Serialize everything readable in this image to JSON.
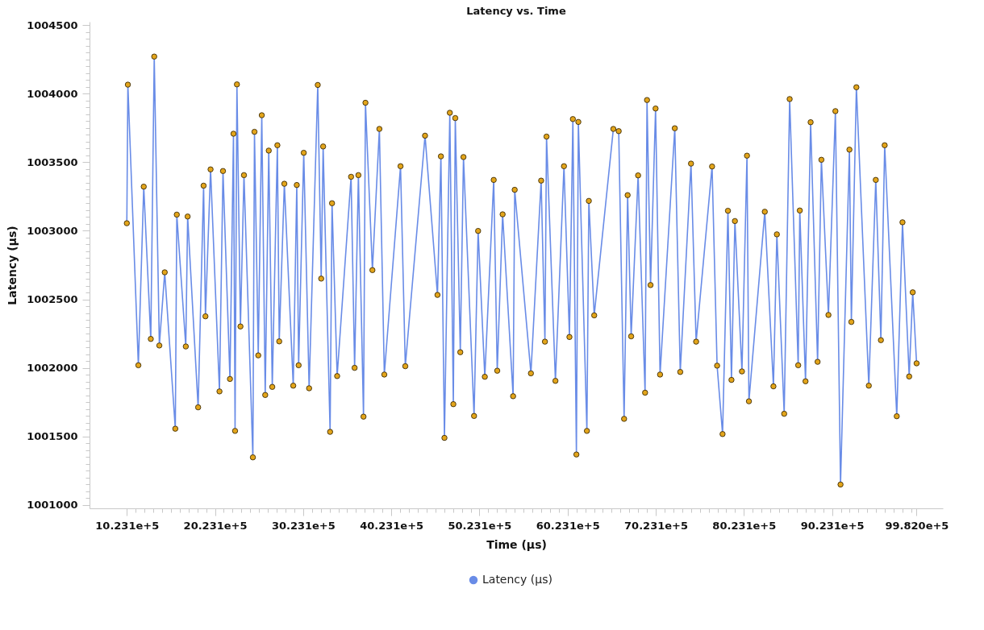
{
  "chart_data": {
    "type": "line",
    "title": "Latency vs. Time",
    "xlabel": "Time (µs)",
    "ylabel": "Latency (µs)",
    "xlim": [
      600000,
      10280000
    ],
    "ylim": [
      1000975,
      1004525
    ],
    "xticks": [
      {
        "value": 1023100,
        "label": "10.231e+5"
      },
      {
        "value": 1123100,
        "label": null
      },
      {
        "value": 1223100,
        "label": null
      },
      {
        "value": 1323100,
        "label": null
      },
      {
        "value": 1423100,
        "label": null
      },
      {
        "value": 1523100,
        "label": null
      },
      {
        "value": 1623100,
        "label": null
      },
      {
        "value": 1723100,
        "label": null
      },
      {
        "value": 1823100,
        "label": null
      },
      {
        "value": 1923100,
        "label": null
      },
      {
        "value": 2023100,
        "label": "20.231e+5"
      },
      {
        "value": 2123100,
        "label": null
      },
      {
        "value": 2223100,
        "label": null
      },
      {
        "value": 2323100,
        "label": null
      },
      {
        "value": 2423100,
        "label": null
      },
      {
        "value": 2523100,
        "label": null
      },
      {
        "value": 2623100,
        "label": null
      },
      {
        "value": 2723100,
        "label": null
      },
      {
        "value": 2823100,
        "label": null
      },
      {
        "value": 2923100,
        "label": null
      },
      {
        "value": 3023100,
        "label": "30.231e+5"
      },
      {
        "value": 3123100,
        "label": null
      },
      {
        "value": 3223100,
        "label": null
      },
      {
        "value": 3323100,
        "label": null
      },
      {
        "value": 3423100,
        "label": null
      },
      {
        "value": 3523100,
        "label": null
      },
      {
        "value": 3623100,
        "label": null
      },
      {
        "value": 3723100,
        "label": null
      },
      {
        "value": 3823100,
        "label": null
      },
      {
        "value": 3923100,
        "label": null
      },
      {
        "value": 4023100,
        "label": "40.231e+5"
      },
      {
        "value": 4123100,
        "label": null
      },
      {
        "value": 4223100,
        "label": null
      },
      {
        "value": 4323100,
        "label": null
      },
      {
        "value": 4423100,
        "label": null
      },
      {
        "value": 4523100,
        "label": null
      },
      {
        "value": 4623100,
        "label": null
      },
      {
        "value": 4723100,
        "label": null
      },
      {
        "value": 4823100,
        "label": null
      },
      {
        "value": 4923100,
        "label": null
      },
      {
        "value": 5023100,
        "label": "50.231e+5"
      },
      {
        "value": 5123100,
        "label": null
      },
      {
        "value": 5223100,
        "label": null
      },
      {
        "value": 5323100,
        "label": null
      },
      {
        "value": 5423100,
        "label": null
      },
      {
        "value": 5523100,
        "label": null
      },
      {
        "value": 5623100,
        "label": null
      },
      {
        "value": 5723100,
        "label": null
      },
      {
        "value": 5823100,
        "label": null
      },
      {
        "value": 5923100,
        "label": null
      },
      {
        "value": 6023100,
        "label": "60.231e+5"
      },
      {
        "value": 6123100,
        "label": null
      },
      {
        "value": 6223100,
        "label": null
      },
      {
        "value": 6323100,
        "label": null
      },
      {
        "value": 6423100,
        "label": null
      },
      {
        "value": 6523100,
        "label": null
      },
      {
        "value": 6623100,
        "label": null
      },
      {
        "value": 6723100,
        "label": null
      },
      {
        "value": 6823100,
        "label": null
      },
      {
        "value": 6923100,
        "label": null
      },
      {
        "value": 7023100,
        "label": "70.231e+5"
      },
      {
        "value": 7123100,
        "label": null
      },
      {
        "value": 7223100,
        "label": null
      },
      {
        "value": 7323100,
        "label": null
      },
      {
        "value": 7423100,
        "label": null
      },
      {
        "value": 7523100,
        "label": null
      },
      {
        "value": 7623100,
        "label": null
      },
      {
        "value": 7723100,
        "label": null
      },
      {
        "value": 7823100,
        "label": null
      },
      {
        "value": 7923100,
        "label": null
      },
      {
        "value": 8023100,
        "label": "80.231e+5"
      },
      {
        "value": 8123100,
        "label": null
      },
      {
        "value": 8223100,
        "label": null
      },
      {
        "value": 8323100,
        "label": null
      },
      {
        "value": 8423100,
        "label": null
      },
      {
        "value": 8523100,
        "label": null
      },
      {
        "value": 8623100,
        "label": null
      },
      {
        "value": 8723100,
        "label": null
      },
      {
        "value": 8823100,
        "label": null
      },
      {
        "value": 8923100,
        "label": null
      },
      {
        "value": 9023100,
        "label": "90.231e+5"
      },
      {
        "value": 9123100,
        "label": null
      },
      {
        "value": 9223100,
        "label": null
      },
      {
        "value": 9323100,
        "label": null
      },
      {
        "value": 9423100,
        "label": null
      },
      {
        "value": 9523100,
        "label": null
      },
      {
        "value": 9623100,
        "label": null
      },
      {
        "value": 9723100,
        "label": null
      },
      {
        "value": 9823100,
        "label": null
      },
      {
        "value": 9923100,
        "label": null
      },
      {
        "value": 9982000,
        "label": "99.820e+5"
      }
    ],
    "yticks": [
      1001000,
      {
        "value": 1001050,
        "label": null
      },
      {
        "value": 1001100,
        "label": null
      },
      {
        "value": 1001150,
        "label": null
      },
      {
        "value": 1001200,
        "label": null
      },
      {
        "value": 1001250,
        "label": null
      },
      {
        "value": 1001300,
        "label": null
      },
      {
        "value": 1001350,
        "label": null
      },
      {
        "value": 1001400,
        "label": null
      },
      {
        "value": 1001450,
        "label": null
      },
      1001500,
      {
        "value": 1001550,
        "label": null
      },
      {
        "value": 1001600,
        "label": null
      },
      {
        "value": 1001650,
        "label": null
      },
      {
        "value": 1001700,
        "label": null
      },
      {
        "value": 1001750,
        "label": null
      },
      {
        "value": 1001800,
        "label": null
      },
      {
        "value": 1001850,
        "label": null
      },
      {
        "value": 1001900,
        "label": null
      },
      {
        "value": 1001950,
        "label": null
      },
      1002000,
      {
        "value": 1002050,
        "label": null
      },
      {
        "value": 1002100,
        "label": null
      },
      {
        "value": 1002150,
        "label": null
      },
      {
        "value": 1002200,
        "label": null
      },
      {
        "value": 1002250,
        "label": null
      },
      {
        "value": 1002300,
        "label": null
      },
      {
        "value": 1002350,
        "label": null
      },
      {
        "value": 1002400,
        "label": null
      },
      {
        "value": 1002450,
        "label": null
      },
      1002500,
      {
        "value": 1002550,
        "label": null
      },
      {
        "value": 1002600,
        "label": null
      },
      {
        "value": 1002650,
        "label": null
      },
      {
        "value": 1002700,
        "label": null
      },
      {
        "value": 1002750,
        "label": null
      },
      {
        "value": 1002800,
        "label": null
      },
      {
        "value": 1002850,
        "label": null
      },
      {
        "value": 1002900,
        "label": null
      },
      {
        "value": 1002950,
        "label": null
      },
      1003000,
      {
        "value": 1003050,
        "label": null
      },
      {
        "value": 1003100,
        "label": null
      },
      {
        "value": 1003150,
        "label": null
      },
      {
        "value": 1003200,
        "label": null
      },
      {
        "value": 1003250,
        "label": null
      },
      {
        "value": 1003300,
        "label": null
      },
      {
        "value": 1003350,
        "label": null
      },
      {
        "value": 1003400,
        "label": null
      },
      {
        "value": 1003450,
        "label": null
      },
      1003500,
      {
        "value": 1003550,
        "label": null
      },
      {
        "value": 1003600,
        "label": null
      },
      {
        "value": 1003650,
        "label": null
      },
      {
        "value": 1003700,
        "label": null
      },
      {
        "value": 1003750,
        "label": null
      },
      {
        "value": 1003800,
        "label": null
      },
      {
        "value": 1003850,
        "label": null
      },
      {
        "value": 1003900,
        "label": null
      },
      {
        "value": 1003950,
        "label": null
      },
      1004000,
      {
        "value": 1004050,
        "label": null
      },
      {
        "value": 1004100,
        "label": null
      },
      {
        "value": 1004150,
        "label": null
      },
      {
        "value": 1004200,
        "label": null
      },
      {
        "value": 1004250,
        "label": null
      },
      {
        "value": 1004300,
        "label": null
      },
      {
        "value": 1004350,
        "label": null
      },
      {
        "value": 1004400,
        "label": null
      },
      {
        "value": 1004450,
        "label": null
      },
      1004500
    ],
    "grid": false,
    "legend": "bottom",
    "marker": "circle",
    "line_style": "solid",
    "series": [
      {
        "name": "Latency (µs)",
        "color": "#4f78e3",
        "x": [
          1023100,
          1035000,
          1154000,
          1215000,
          1295000,
          1334000,
          1392000,
          1453000,
          1573000,
          1590000,
          1692000,
          1713000,
          1832000,
          1894000,
          1915000,
          1973000,
          2074000,
          2114000,
          2193000,
          2233000,
          2251000,
          2272000,
          2312000,
          2352000,
          2453000,
          2471000,
          2514000,
          2554000,
          2593000,
          2633000,
          2673000,
          2731000,
          2752000,
          2810000,
          2911000,
          2951000,
          2972000,
          3030000,
          3091000,
          3189000,
          3228000,
          3250000,
          3329000,
          3351000,
          3409000,
          3567000,
          3607000,
          3650000,
          3708000,
          3730000,
          3809000,
          3888000,
          3944000,
          4128000,
          4182000,
          4406000,
          4547000,
          4586000,
          4626000,
          4687000,
          4727000,
          4749000,
          4806000,
          4842000,
          4962000,
          5008000,
          5084000,
          5185000,
          5225000,
          5286000,
          5405000,
          5423000,
          5607000,
          5723000,
          5766000,
          5784000,
          5885000,
          5982000,
          6044000,
          6083000,
          6123000,
          6145000,
          6242000,
          6264000,
          6325000,
          6542000,
          6603000,
          6664000,
          6704000,
          6744000,
          6823000,
          6902000,
          6924000,
          6964000,
          7021000,
          7072000,
          7239000,
          7301000,
          7423000,
          7481000,
          7662000,
          7719000,
          7781000,
          7842000,
          7882000,
          7921000,
          8001000,
          8058000,
          8080000,
          8260000,
          8358000,
          8397000,
          8480000,
          8542000,
          8639000,
          8657000,
          8722000,
          8780000,
          8859000,
          8902000,
          8982000,
          9061000,
          9119000,
          9220000,
          9242000,
          9299000,
          9440000,
          9519000,
          9577000,
          9620000,
          9757000,
          9822000,
          9898000,
          9938000,
          9982000
        ],
        "values": [
          1003055,
          1004066,
          1002019,
          1003322,
          1002211,
          1004271,
          1002163,
          1002697,
          1001556,
          1003118,
          1002156,
          1003104,
          1001712,
          1003329,
          1002376,
          1003448,
          1001828,
          1003436,
          1001919,
          1003708,
          1001540,
          1004068,
          1002302,
          1003406,
          1001347,
          1003722,
          1002091,
          1003843,
          1001802,
          1003585,
          1001861,
          1003624,
          1002193,
          1003343,
          1001870,
          1003334,
          1002019,
          1003569,
          1001851,
          1004064,
          1002651,
          1003615,
          1001533,
          1003201,
          1001940,
          1003394,
          1002000,
          1003406,
          1001644,
          1003934,
          1002713,
          1003743,
          1001951,
          1003471,
          1002012,
          1003694,
          1002532,
          1003543,
          1001489,
          1003861,
          1001735,
          1003822,
          1002114,
          1003538,
          1001649,
          1002999,
          1001935,
          1003371,
          1001979,
          1003120,
          1001793,
          1003299,
          1001960,
          1003366,
          1002191,
          1003687,
          1001905,
          1003471,
          1002225,
          1003815,
          1001368,
          1003794,
          1001540,
          1003218,
          1002383,
          1003743,
          1003727,
          1001628,
          1003260,
          1002230,
          1003404,
          1001819,
          1003954,
          1002604,
          1003892,
          1001951,
          1003748,
          1001970,
          1003490,
          1002191,
          1003469,
          1002016,
          1001517,
          1003146,
          1001912,
          1003071,
          1001974,
          1003548,
          1001756,
          1003139,
          1001865,
          1002974,
          1001665,
          1003961,
          1002019,
          1003148,
          1001902,
          1003792,
          1002044,
          1003518,
          1002386,
          1003873,
          1001149,
          1003592,
          1002335,
          1004047,
          1001870,
          1003371,
          1002202,
          1003624,
          1001647,
          1003062,
          1001937,
          1002551,
          1002033
        ]
      }
    ]
  }
}
